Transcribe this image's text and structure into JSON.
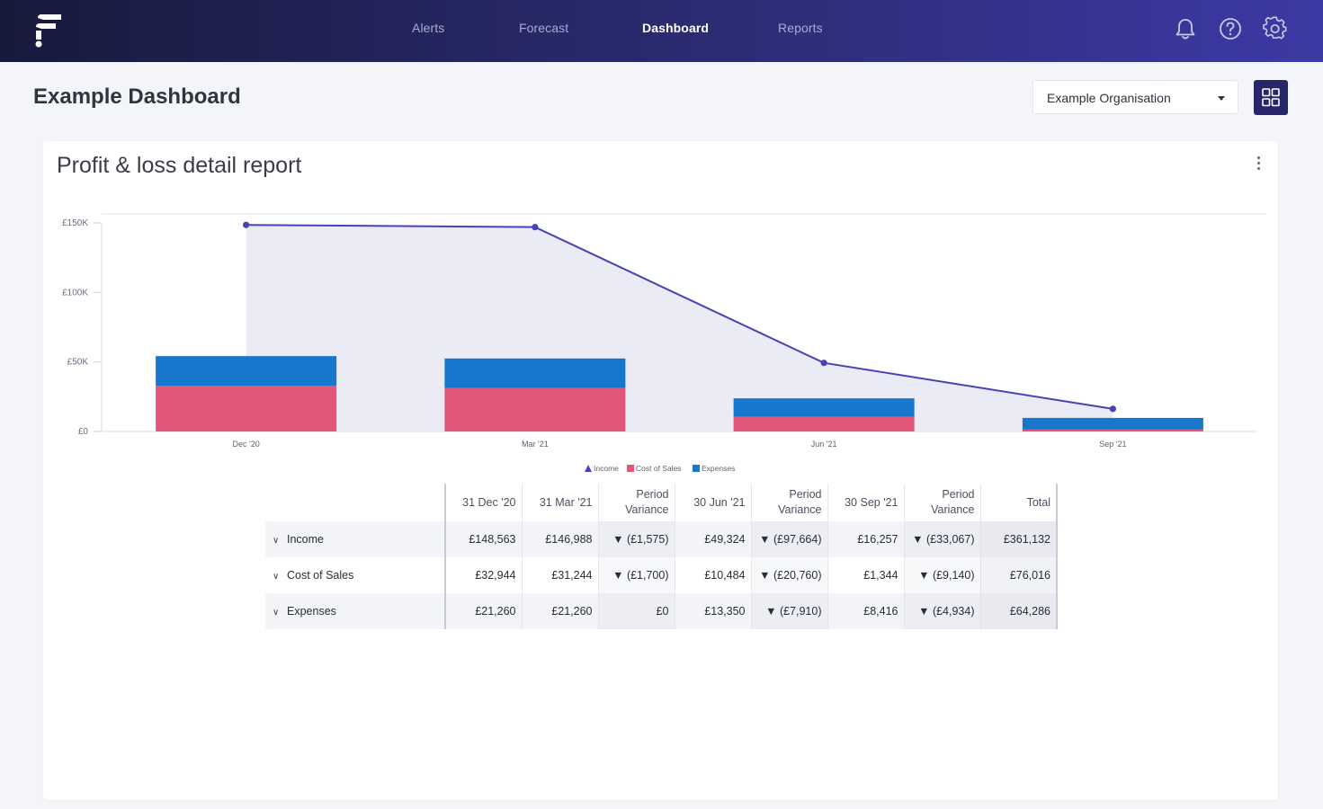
{
  "nav": {
    "items": [
      "Alerts",
      "Forecast",
      "Dashboard",
      "Reports"
    ],
    "active": "Dashboard"
  },
  "icons": {
    "logo": "fathom-logo-icon",
    "notifications": "bell-icon",
    "help": "question-circle-icon",
    "settings": "gear-icon",
    "grid": "grid-view-icon"
  },
  "page": {
    "title": "Example Dashboard",
    "organisation": "Example Organisation"
  },
  "card": {
    "title": "Profit & loss detail report"
  },
  "colors": {
    "income": "#4743b4",
    "income_area": "#ebebf6",
    "cost_of_sales": "#e0577a",
    "expenses": "#1677cc",
    "negative_income_variance": "#e0507a",
    "negative_cost_variance": "#2aa7be"
  },
  "chart_data": {
    "type": "bar",
    "categories": [
      "Dec '20",
      "Mar '21",
      "Jun '21",
      "Sep '21"
    ],
    "series": [
      {
        "name": "Income",
        "type": "area-line",
        "values": [
          148563,
          146988,
          49324,
          16257
        ]
      },
      {
        "name": "Cost of Sales",
        "type": "stacked-bar",
        "values": [
          32944,
          31244,
          10484,
          1344
        ]
      },
      {
        "name": "Expenses",
        "type": "stacked-bar",
        "values": [
          21260,
          21260,
          13350,
          8416
        ]
      }
    ],
    "yticks": [
      "£0",
      "£50K",
      "£100K",
      "£150K"
    ],
    "ylim": [
      0,
      150000
    ],
    "legend": [
      "Income",
      "Cost of Sales",
      "Expenses"
    ],
    "legend_position": "bottom"
  },
  "table": {
    "headers": [
      "31 Dec '20",
      "31 Mar '21",
      "Period Variance",
      "30 Jun '21",
      "Period Variance",
      "30 Sep '21",
      "Period Variance",
      "Total"
    ],
    "rows": [
      {
        "label": "Income",
        "cells": [
          "£148,563",
          "£146,988",
          "▼ (£1,575)",
          "£49,324",
          "▼ (£97,664)",
          "£16,257",
          "▼ (£33,067)",
          "£361,132"
        ]
      },
      {
        "label": "Cost of Sales",
        "cells": [
          "£32,944",
          "£31,244",
          "▼ (£1,700)",
          "£10,484",
          "▼ (£20,760)",
          "£1,344",
          "▼ (£9,140)",
          "£76,016"
        ]
      },
      {
        "label": "Expenses",
        "cells": [
          "£21,260",
          "£21,260",
          "£0",
          "£13,350",
          "▼ (£7,910)",
          "£8,416",
          "▼ (£4,934)",
          "£64,286"
        ]
      }
    ]
  }
}
